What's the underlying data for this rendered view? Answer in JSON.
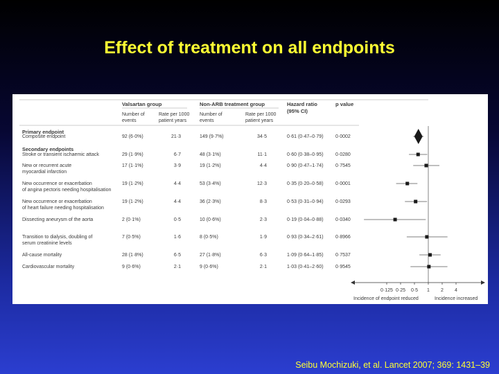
{
  "slide": {
    "title": "Effect of treatment on all endpoints",
    "citation": "Seibu Mochizuki, et al. Lancet 2007; 369: 1431–39"
  },
  "colors": {
    "title": "#ffff33",
    "citation": "#ffff33",
    "panel": "#ffffff",
    "marker": "#1a1a1a",
    "section_heading": "#555555"
  },
  "table": {
    "group1_header": "Valsartan group",
    "group2_header": "Non-ARB treatment group",
    "hr_header_line1": "Hazard ratio",
    "hr_header_line2": "(95% CI)",
    "p_header": "p value",
    "col_events_line1": "Number of",
    "col_events_line2": "events",
    "col_rate_line1": "Rate per 1000",
    "col_rate_line2": "patient years",
    "primary_heading": "Primary endpoint",
    "secondary_heading": "Secondary endpoints"
  },
  "chart_data": {
    "type": "forest",
    "x_scale": "log2",
    "x_ticks": [
      "0·125",
      "0·25",
      "0·5",
      "1",
      "2",
      "4"
    ],
    "x_tick_values": [
      0.125,
      0.25,
      0.5,
      1,
      2,
      4
    ],
    "reference_line": 1,
    "x_label_left": "Incidence of endpoint reduced",
    "x_label_right": "Incidence increased",
    "rows": [
      {
        "label": [
          "Composite endpoint"
        ],
        "v_events": "92 (6·0%)",
        "v_rate": "21·3",
        "n_events": "149 (9·7%)",
        "n_rate": "34·5",
        "hr_text": "0·61 (0·47–0·79)",
        "p": "0·0002",
        "hr": 0.61,
        "lo": 0.47,
        "hi": 0.79,
        "marker": "diamond"
      },
      {
        "label": [
          "Stroke or transient ischaemic attack"
        ],
        "v_events": "29 (1·9%)",
        "v_rate": "6·7",
        "n_events": "48 (3·1%)",
        "n_rate": "11·1",
        "hr_text": "0·60 (0·38–0·95)",
        "p": "0·0280",
        "hr": 0.6,
        "lo": 0.38,
        "hi": 0.95,
        "marker": "square"
      },
      {
        "label": [
          "New or recurrent acute",
          "myocardial infarction"
        ],
        "v_events": "17 (1·1%)",
        "v_rate": "3·9",
        "n_events": "19 (1·2%)",
        "n_rate": "4·4",
        "hr_text": "0·90 (0·47–1·74)",
        "p": "0·7545",
        "hr": 0.9,
        "lo": 0.47,
        "hi": 1.74,
        "marker": "square"
      },
      {
        "label": [
          "New occurrence or exacerbation",
          "of angina pectoris needing hospitalisation"
        ],
        "v_events": "19 (1·2%)",
        "v_rate": "4·4",
        "n_events": "53 (3·4%)",
        "n_rate": "12·3",
        "hr_text": "0·35 (0·20–0·58)",
        "p": "0·0001",
        "hr": 0.35,
        "lo": 0.2,
        "hi": 0.58,
        "marker": "square"
      },
      {
        "label": [
          "New occurrence or exacerbation",
          "of heart failure needing hospitalisation"
        ],
        "v_events": "19 (1·2%)",
        "v_rate": "4·4",
        "n_events": "36 (2·3%)",
        "n_rate": "8·3",
        "hr_text": "0·53 (0·31–0·94)",
        "p": "0·0293",
        "hr": 0.53,
        "lo": 0.31,
        "hi": 0.94,
        "marker": "square"
      },
      {
        "label": [
          "Dissecting aneurysm of the aorta"
        ],
        "v_events": "2 (0·1%)",
        "v_rate": "0·5",
        "n_events": "10 (0·6%)",
        "n_rate": "2·3",
        "hr_text": "0·19 (0·04–0·88)",
        "p": "0·0340",
        "hr": 0.19,
        "lo": 0.04,
        "hi": 0.88,
        "marker": "square"
      },
      {
        "label": [
          "Transition to dialysis, doubling of",
          "serum creatinine levels"
        ],
        "v_events": "7 (0·5%)",
        "v_rate": "1·6",
        "n_events": "8 (0·5%)",
        "n_rate": "1·9",
        "hr_text": "0·93 (0·34–2·61)",
        "p": "0·8966",
        "hr": 0.93,
        "lo": 0.34,
        "hi": 2.61,
        "marker": "square"
      },
      {
        "label": [
          "All-cause mortality"
        ],
        "v_events": "28 (1·8%)",
        "v_rate": "6·5",
        "n_events": "27 (1·8%)",
        "n_rate": "6·3",
        "hr_text": "1·09 (0·64–1·85)",
        "p": "0·7537",
        "hr": 1.09,
        "lo": 0.64,
        "hi": 1.85,
        "marker": "square"
      },
      {
        "label": [
          "Cardiovascular mortality"
        ],
        "v_events": "9 (0·6%)",
        "v_rate": "2·1",
        "n_events": "9 (0·6%)",
        "n_rate": "2·1",
        "hr_text": "1·03 (0·41–2·60)",
        "p": "0·9545",
        "hr": 1.03,
        "lo": 0.41,
        "hi": 2.6,
        "marker": "square"
      }
    ]
  }
}
